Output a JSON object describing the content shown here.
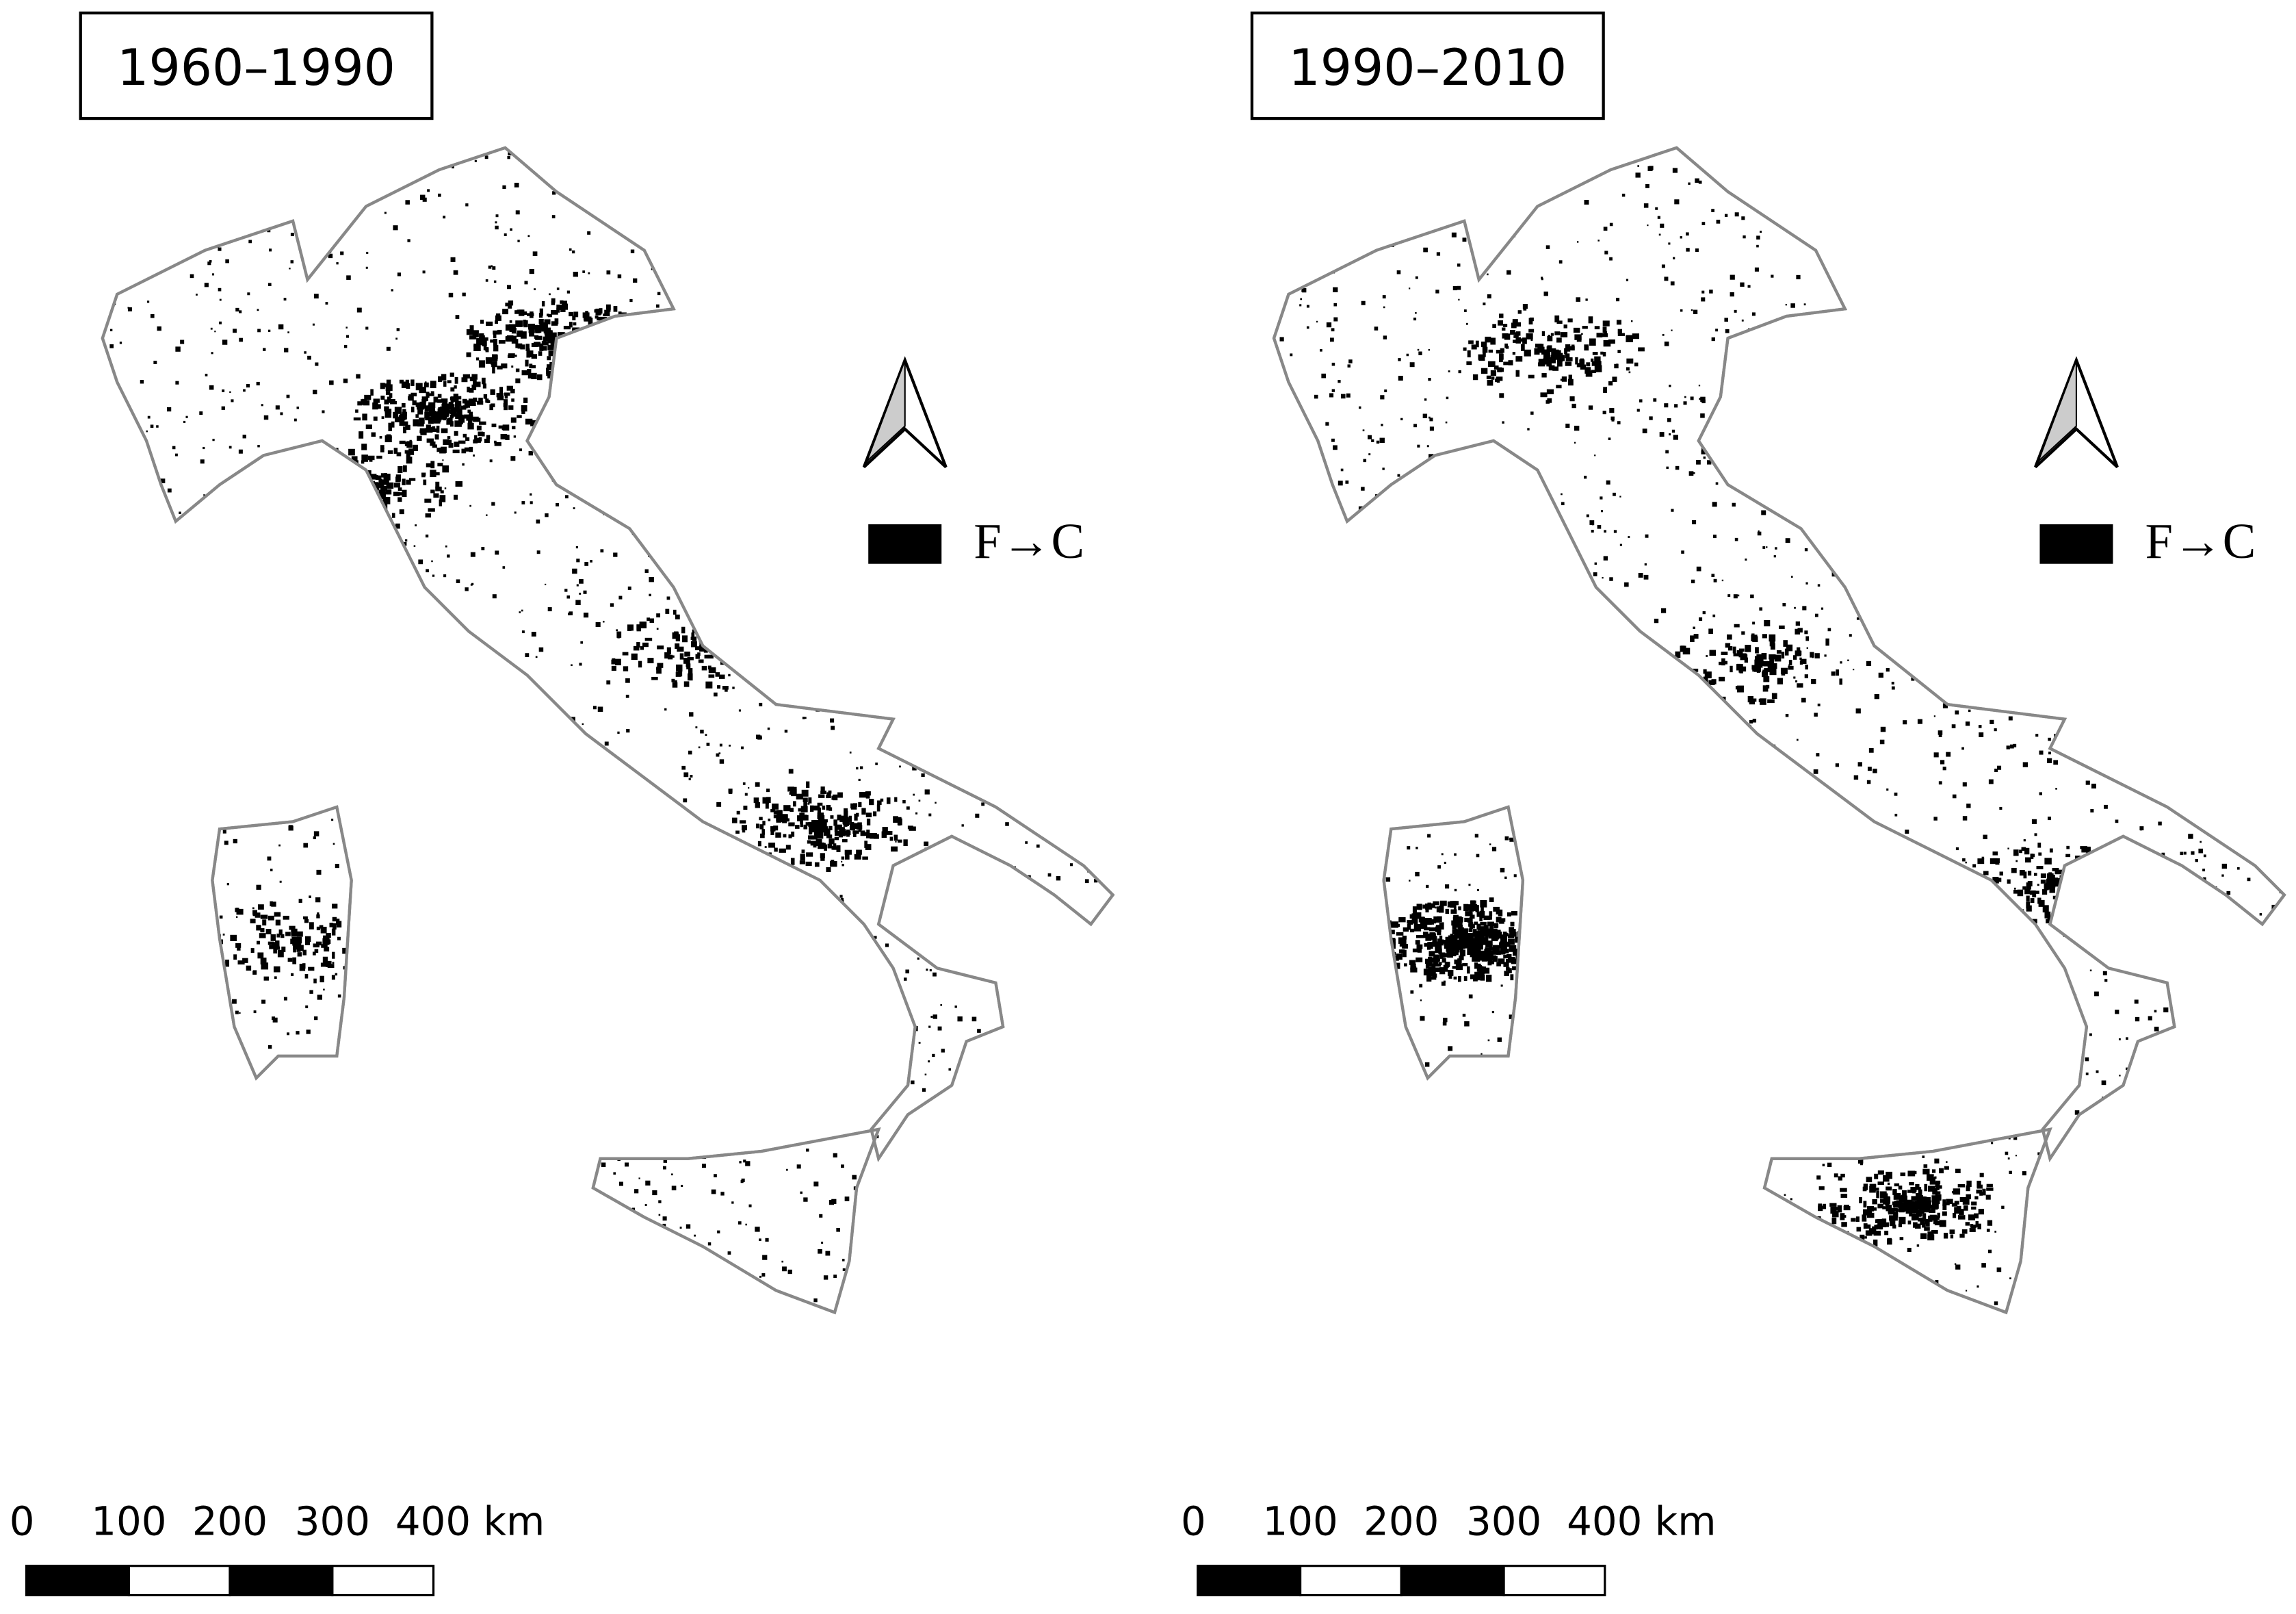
{
  "panels": [
    {
      "title": "1960–1990",
      "legend": "F→C",
      "scale_labels": [
        "0",
        "100",
        "200",
        "300",
        "400 km"
      ]
    },
    {
      "title": "1990–2010",
      "legend": "F→C",
      "scale_labels": [
        "0",
        "100",
        "200",
        "300",
        "400 km"
      ]
    }
  ]
}
